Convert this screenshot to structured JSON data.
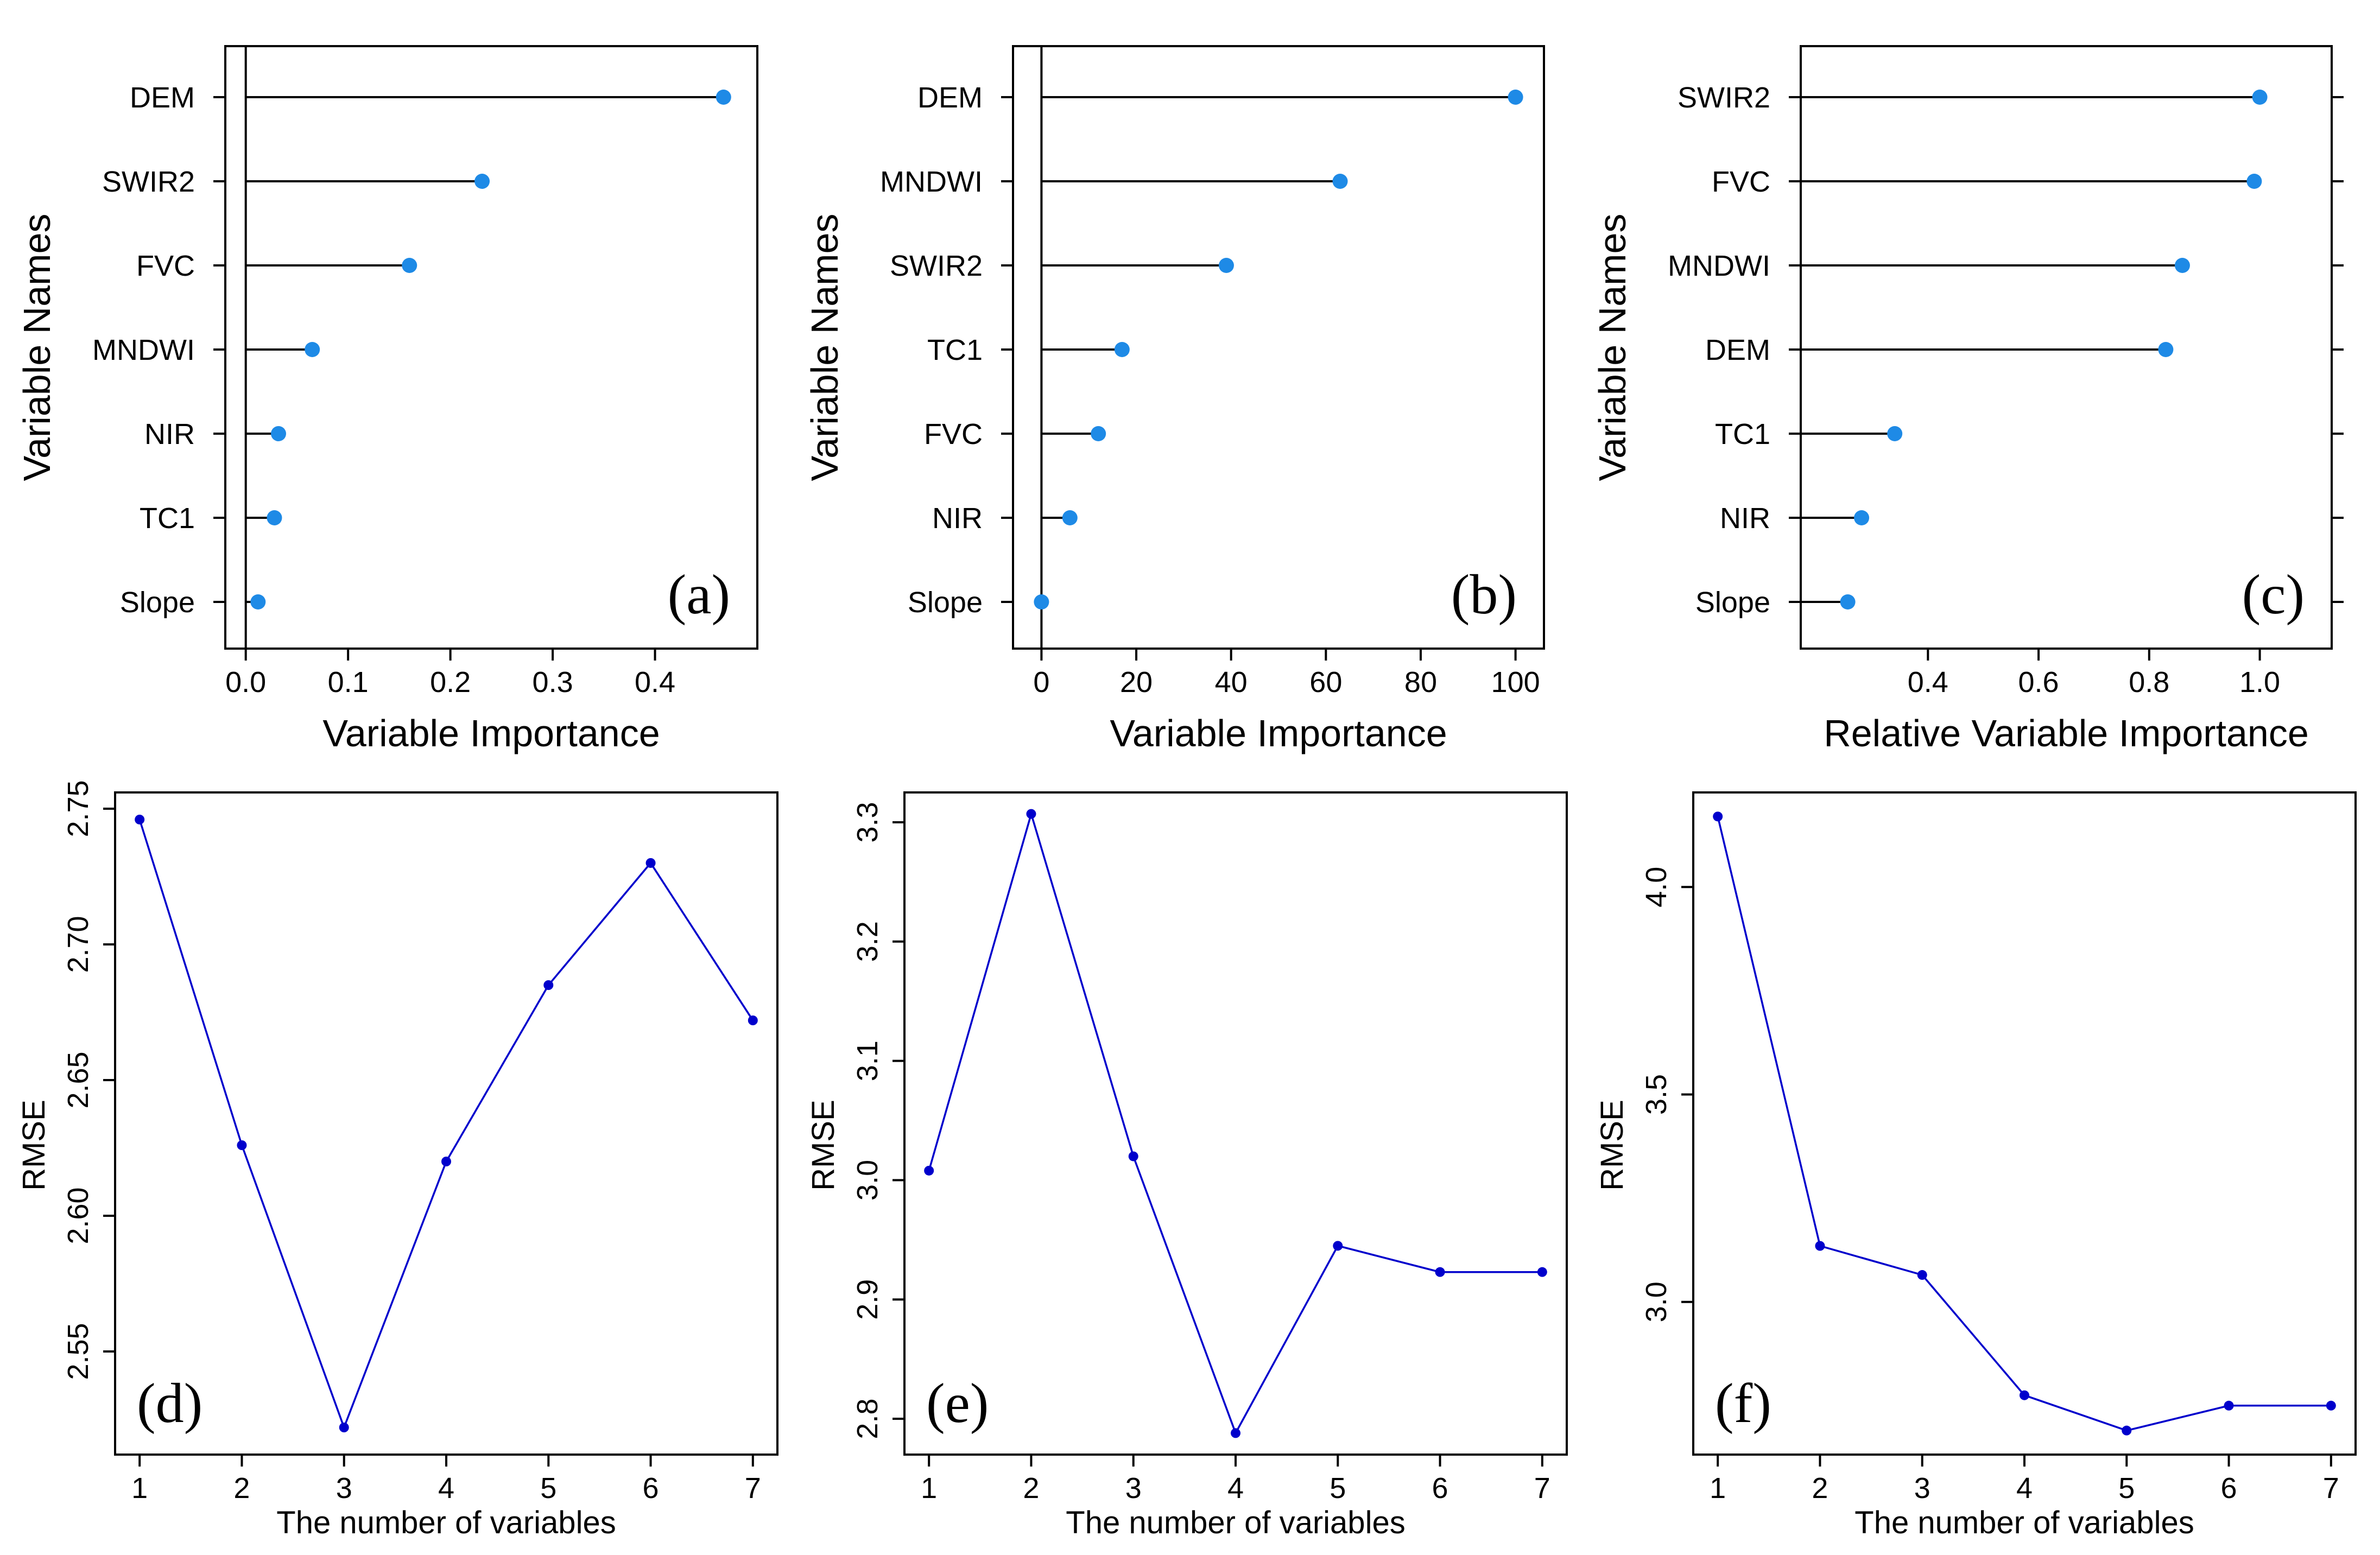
{
  "figure": {
    "colors": {
      "dot": "#1e8ae6",
      "line": "#0000cc",
      "axis": "#000000",
      "stem": "#000000"
    }
  },
  "chart_data": [
    {
      "id": "a",
      "type": "lollipop",
      "panel_label": "(a)",
      "xlabel": "Variable Importance",
      "ylabel": "Variable Names",
      "xlim": [
        -0.02,
        0.5
      ],
      "xticks": [
        0.0,
        0.1,
        0.2,
        0.3,
        0.4
      ],
      "xtick_labels": [
        "0.0",
        "0.1",
        "0.2",
        "0.3",
        "0.4"
      ],
      "zero_line": 0,
      "categories": [
        "DEM",
        "SWIR2",
        "FVC",
        "MNDWI",
        "NIR",
        "TC1",
        "Slope"
      ],
      "values": [
        0.467,
        0.231,
        0.16,
        0.065,
        0.032,
        0.028,
        0.012
      ]
    },
    {
      "id": "b",
      "type": "lollipop",
      "panel_label": "(b)",
      "xlabel": "Variable Importance",
      "ylabel": "Variable Names",
      "xlim": [
        -6,
        106
      ],
      "xticks": [
        0,
        20,
        40,
        60,
        80,
        100
      ],
      "xtick_labels": [
        "0",
        "20",
        "40",
        "60",
        "80",
        "100"
      ],
      "zero_line": 0,
      "categories": [
        "DEM",
        "MNDWI",
        "SWIR2",
        "TC1",
        "FVC",
        "NIR",
        "Slope"
      ],
      "values": [
        100,
        63,
        39,
        17,
        12,
        6,
        0
      ]
    },
    {
      "id": "c",
      "type": "lollipop",
      "panel_label": "(c)",
      "xlabel": "Relative Variable Importance",
      "ylabel": "Variable Names",
      "xlim": [
        0.17,
        1.13
      ],
      "xticks": [
        0.4,
        0.6,
        0.8,
        1.0
      ],
      "xtick_labels": [
        "0.4",
        "0.6",
        "0.8",
        "1.0"
      ],
      "zero_line": null,
      "categories": [
        "SWIR2",
        "FVC",
        "MNDWI",
        "DEM",
        "TC1",
        "NIR",
        "Slope"
      ],
      "values": [
        1.0,
        0.99,
        0.86,
        0.83,
        0.34,
        0.28,
        0.255
      ]
    },
    {
      "id": "d",
      "type": "line",
      "panel_label": "(d)",
      "xlabel": "The number of variables",
      "ylabel": "RMSE",
      "x": [
        1,
        2,
        3,
        4,
        5,
        6,
        7
      ],
      "y": [
        2.746,
        2.626,
        2.522,
        2.62,
        2.685,
        2.73,
        2.672
      ],
      "xlim": [
        0.76,
        7.24
      ],
      "ylim": [
        2.512,
        2.756
      ],
      "xticks": [
        1,
        2,
        3,
        4,
        5,
        6,
        7
      ],
      "xtick_labels": [
        "1",
        "2",
        "3",
        "4",
        "5",
        "6",
        "7"
      ],
      "yticks": [
        2.55,
        2.6,
        2.65,
        2.7,
        2.75
      ],
      "ytick_labels": [
        "2.55",
        "2.60",
        "2.65",
        "2.70",
        "2.75"
      ]
    },
    {
      "id": "e",
      "type": "line",
      "panel_label": "(e)",
      "xlabel": "The number of variables",
      "ylabel": "RMSE",
      "x": [
        1,
        2,
        3,
        4,
        5,
        6,
        7
      ],
      "y": [
        3.008,
        3.307,
        3.02,
        2.788,
        2.945,
        2.923,
        2.923
      ],
      "xlim": [
        0.76,
        7.24
      ],
      "ylim": [
        2.77,
        3.325
      ],
      "xticks": [
        1,
        2,
        3,
        4,
        5,
        6,
        7
      ],
      "xtick_labels": [
        "1",
        "2",
        "3",
        "4",
        "5",
        "6",
        "7"
      ],
      "yticks": [
        2.8,
        2.9,
        3.0,
        3.1,
        3.2,
        3.3
      ],
      "ytick_labels": [
        "2.8",
        "2.9",
        "3.0",
        "3.1",
        "3.2",
        "3.3"
      ]
    },
    {
      "id": "f",
      "type": "line",
      "panel_label": "(f)",
      "xlabel": "The number of variables",
      "ylabel": "RMSE",
      "x": [
        1,
        2,
        3,
        4,
        5,
        6,
        7
      ],
      "y": [
        4.17,
        3.135,
        3.065,
        2.775,
        2.69,
        2.75,
        2.75
      ],
      "xlim": [
        0.76,
        7.24
      ],
      "ylim": [
        2.632,
        4.228
      ],
      "xticks": [
        1,
        2,
        3,
        4,
        5,
        6,
        7
      ],
      "xtick_labels": [
        "1",
        "2",
        "3",
        "4",
        "5",
        "6",
        "7"
      ],
      "yticks": [
        3.0,
        3.5,
        4.0
      ],
      "ytick_labels": [
        "3.0",
        "3.5",
        "4.0"
      ]
    }
  ]
}
